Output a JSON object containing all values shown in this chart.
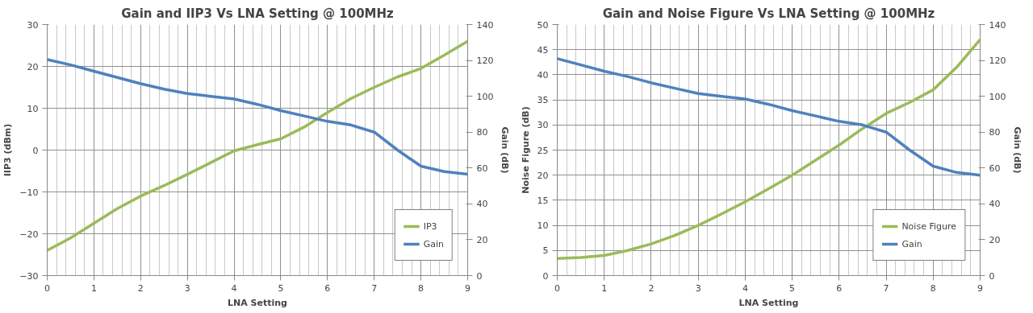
{
  "chart_data": [
    {
      "type": "line",
      "title": "Gain and IIP3 Vs LNA Setting @ 100MHz",
      "xlabel": "LNA Setting",
      "ylabel": "IIP3 (dBm)",
      "y2label": "Gain (dB)",
      "x": [
        0,
        0.5,
        1,
        1.5,
        2,
        2.5,
        3,
        3.5,
        4,
        4.5,
        5,
        5.5,
        6,
        6.5,
        7,
        7.5,
        8,
        8.5,
        9
      ],
      "series": [
        {
          "name": "IP3",
          "color": "#9bbb59",
          "values": [
            -24,
            -21,
            -17.5,
            -14,
            -11,
            -8.5,
            -5.8,
            -3,
            -0.2,
            1.3,
            2.7,
            5.5,
            9,
            12.3,
            15,
            17.5,
            19.5,
            22.7,
            26
          ]
        },
        {
          "name": "Gain",
          "color": "#4f81bd",
          "axis": "y2",
          "values": [
            120.5,
            117.5,
            114,
            110.5,
            107,
            104,
            101.5,
            100,
            98.5,
            95.5,
            92,
            89,
            86,
            84,
            80,
            70,
            61,
            58,
            56.5
          ]
        }
      ],
      "xlim": [
        0,
        9
      ],
      "xticks": [
        0,
        1,
        2,
        3,
        4,
        5,
        6,
        7,
        8,
        9
      ],
      "ylim": [
        -30,
        30
      ],
      "yticks": [
        -30,
        -20,
        -10,
        0,
        10,
        20,
        30
      ],
      "y2lim": [
        0,
        140
      ],
      "y2ticks": [
        0,
        20,
        40,
        60,
        80,
        100,
        120,
        140
      ],
      "grid": true,
      "legend": "bottom right",
      "line_style": "solid",
      "marker": "none"
    },
    {
      "type": "line",
      "title": "Gain and Noise Figure Vs LNA Setting @ 100MHz",
      "xlabel": "LNA Setting",
      "ylabel": "Noise Figure (dB)",
      "y2label": "Gain (dB)",
      "x": [
        0,
        0.5,
        1,
        1.5,
        2,
        2.5,
        3,
        3.5,
        4,
        4.5,
        5,
        5.5,
        6,
        6.5,
        7,
        7.5,
        8,
        8.5,
        9
      ],
      "series": [
        {
          "name": "Noise Figure",
          "color": "#9bbb59",
          "values": [
            3.4,
            3.6,
            4,
            5,
            6.3,
            8,
            10,
            12.3,
            14.7,
            17.3,
            20,
            23,
            26,
            29.3,
            32.3,
            34.5,
            37,
            41.5,
            47
          ]
        },
        {
          "name": "Gain",
          "color": "#4f81bd",
          "axis": "y2",
          "values": [
            121,
            117.5,
            114,
            111,
            107.5,
            104.5,
            101.5,
            100,
            98.5,
            95.5,
            92,
            89,
            86,
            84,
            80,
            70,
            61,
            57.5,
            56
          ]
        }
      ],
      "xlim": [
        0,
        9
      ],
      "xticks": [
        0,
        1,
        2,
        3,
        4,
        5,
        6,
        7,
        8,
        9
      ],
      "ylim": [
        0,
        50
      ],
      "yticks": [
        0,
        5,
        10,
        15,
        20,
        25,
        30,
        35,
        40,
        45,
        50
      ],
      "y2lim": [
        0,
        140
      ],
      "y2ticks": [
        0,
        20,
        40,
        60,
        80,
        100,
        120,
        140
      ],
      "grid": true,
      "legend": "bottom right",
      "line_style": "solid",
      "marker": "none"
    }
  ]
}
